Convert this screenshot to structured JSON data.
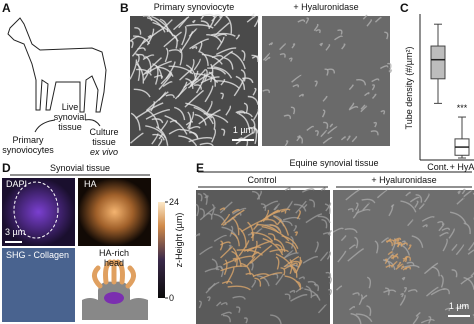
{
  "panel_a": {
    "letter": "A",
    "live": "Live",
    "synovial": "synovial",
    "tissue": "tissue",
    "primary": "Primary",
    "synoviocytes": "synoviocytes",
    "culture": "Culture",
    "culture_tissue": "tissue",
    "ex_vivo": "ex vivo"
  },
  "panel_b": {
    "letter": "B",
    "left_title": "Primary synoviocyte",
    "right_title": "+ Hyaluronidase",
    "scale": "1 µm"
  },
  "panel_c": {
    "letter": "C",
    "type": "box",
    "y_label": "Tube density (#/µm²)",
    "categories": [
      "Cont.",
      "+ HyA"
    ],
    "boxes": [
      {
        "min": 1.0,
        "q1": 1.45,
        "median": 1.8,
        "q3": 2.05,
        "max": 2.45
      },
      {
        "min": 0.0,
        "q1": 0.05,
        "median": 0.2,
        "q3": 0.35,
        "max": 0.75
      }
    ],
    "significance": "***",
    "ylim": [
      0,
      2.6
    ],
    "box_color": "#bdbdbd"
  },
  "panel_d": {
    "letter": "D",
    "title": "Synovial tissue",
    "dapi": "DAPI",
    "ha": "HA",
    "scale": "3 µm",
    "shg": "SHG - Collagen",
    "head": "HA-rich",
    "head2": "head",
    "colorbar_label": "z-Height (µm)",
    "zlim": [
      0,
      24
    ],
    "zticks": [
      24,
      0
    ]
  },
  "panel_e": {
    "letter": "E",
    "title": "Equine synovial tissue",
    "left_title": "Control",
    "right_title": "+ Hyaluronidase",
    "scale": "1 µm"
  }
}
